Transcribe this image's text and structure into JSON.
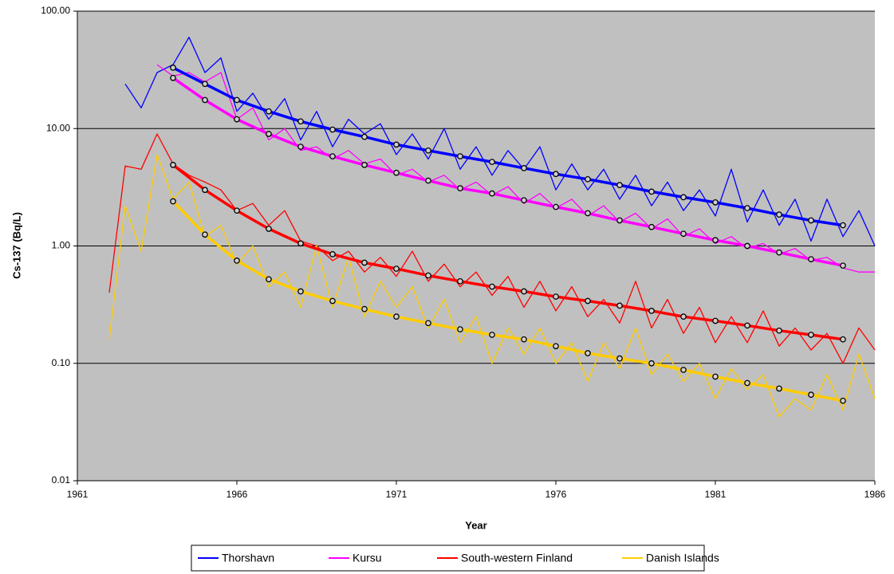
{
  "chart_data": {
    "type": "line",
    "yscale": "log",
    "grid": true,
    "legend_position": "bottom",
    "xlabel": "Year",
    "ylabel": "Cs-137 (Bq/L)",
    "xlim": [
      1961,
      1986
    ],
    "xticks": [
      1961,
      1966,
      1971,
      1976,
      1981,
      1986
    ],
    "ylim": [
      0.01,
      100
    ],
    "yticks": [
      {
        "value": 0.01,
        "label": "0.01"
      },
      {
        "value": 0.1,
        "label": "0.10"
      },
      {
        "value": 1,
        "label": "1.00"
      },
      {
        "value": 10,
        "label": "10.00"
      },
      {
        "value": 100,
        "label": "100.00"
      }
    ],
    "x": [
      1962.0,
      1962.5,
      1963.0,
      1963.5,
      1964.0,
      1964.5,
      1965.0,
      1965.5,
      1966.0,
      1966.5,
      1967.0,
      1967.5,
      1968.0,
      1968.5,
      1969.0,
      1969.5,
      1970.0,
      1970.5,
      1971.0,
      1971.5,
      1972.0,
      1972.5,
      1973.0,
      1973.5,
      1974.0,
      1974.5,
      1975.0,
      1975.5,
      1976.0,
      1976.5,
      1977.0,
      1977.5,
      1978.0,
      1978.5,
      1979.0,
      1979.5,
      1980.0,
      1980.5,
      1981.0,
      1981.5,
      1982.0,
      1982.5,
      1983.0,
      1983.5,
      1984.0,
      1984.5,
      1985.0,
      1985.5,
      1986.0
    ],
    "series": [
      {
        "name": "Thorshavn",
        "color": "#0000ff",
        "values": [
          null,
          24,
          15,
          30,
          35,
          60,
          30,
          40,
          14,
          20,
          12,
          18,
          8,
          14,
          7,
          12,
          9,
          11,
          6,
          9,
          5.5,
          10,
          4.5,
          7,
          4,
          6.5,
          4.5,
          7,
          3,
          5,
          3,
          4.5,
          2.5,
          4,
          2.2,
          3.5,
          2,
          3,
          1.8,
          4.5,
          1.6,
          3,
          1.5,
          2.5,
          1.1,
          2.5,
          1.2,
          2,
          1.0
        ]
      },
      {
        "name": "Kursu",
        "color": "#ff00ff",
        "values": [
          null,
          null,
          null,
          35,
          28,
          30,
          25,
          30,
          12,
          15,
          8,
          10,
          6.5,
          7,
          5.5,
          6.5,
          5,
          5.5,
          4,
          4.5,
          3.5,
          4,
          3,
          3.5,
          2.7,
          3.2,
          2.3,
          2.8,
          2.1,
          2.5,
          1.8,
          2.2,
          1.6,
          1.9,
          1.4,
          1.7,
          1.2,
          1.4,
          1.05,
          1.2,
          0.95,
          1.05,
          0.85,
          0.95,
          0.75,
          0.8,
          0.65,
          0.6,
          0.6
        ]
      },
      {
        "name": "South-western Finland",
        "color": "#ff0000",
        "values": [
          0.4,
          4.8,
          4.5,
          9,
          5,
          4,
          3.5,
          3,
          2,
          2.3,
          1.5,
          2,
          1.1,
          1,
          0.75,
          0.9,
          0.6,
          0.8,
          0.55,
          0.9,
          0.5,
          0.7,
          0.45,
          0.6,
          0.38,
          0.55,
          0.3,
          0.5,
          0.28,
          0.45,
          0.25,
          0.35,
          0.22,
          0.5,
          0.2,
          0.35,
          0.18,
          0.3,
          0.15,
          0.25,
          0.15,
          0.28,
          0.14,
          0.2,
          0.13,
          0.18,
          0.1,
          0.2,
          0.13
        ]
      },
      {
        "name": "Danish Islands",
        "color": "#ffcc00",
        "values": [
          0.16,
          2.2,
          0.9,
          6,
          2.5,
          3.5,
          1.2,
          1.5,
          0.7,
          1,
          0.45,
          0.6,
          0.3,
          1,
          0.3,
          0.8,
          0.25,
          0.5,
          0.3,
          0.45,
          0.2,
          0.35,
          0.15,
          0.25,
          0.1,
          0.2,
          0.12,
          0.2,
          0.1,
          0.15,
          0.07,
          0.15,
          0.09,
          0.2,
          0.08,
          0.12,
          0.07,
          0.1,
          0.05,
          0.09,
          0.06,
          0.08,
          0.035,
          0.05,
          0.04,
          0.08,
          0.04,
          0.12,
          0.05
        ]
      }
    ],
    "fit_x": [
      1964,
      1965,
      1966,
      1967,
      1968,
      1969,
      1970,
      1971,
      1972,
      1973,
      1974,
      1975,
      1976,
      1977,
      1978,
      1979,
      1980,
      1981,
      1982,
      1983,
      1984,
      1985
    ],
    "fits": [
      {
        "color": "#0000ff",
        "values": [
          33,
          24,
          17.5,
          14,
          11.5,
          9.8,
          8.5,
          7.3,
          6.5,
          5.8,
          5.2,
          4.6,
          4.1,
          3.7,
          3.3,
          2.9,
          2.6,
          2.35,
          2.1,
          1.85,
          1.65,
          1.5
        ]
      },
      {
        "color": "#ff00ff",
        "values": [
          27,
          17.5,
          12,
          9,
          7,
          5.8,
          4.9,
          4.2,
          3.6,
          3.1,
          2.8,
          2.45,
          2.15,
          1.9,
          1.65,
          1.45,
          1.27,
          1.12,
          1.0,
          0.88,
          0.77,
          0.68
        ]
      },
      {
        "color": "#ff0000",
        "values": [
          4.9,
          3.0,
          2.0,
          1.4,
          1.05,
          0.85,
          0.72,
          0.64,
          0.56,
          0.5,
          0.45,
          0.41,
          0.37,
          0.34,
          0.31,
          0.28,
          0.25,
          0.23,
          0.21,
          0.19,
          0.175,
          0.16
        ]
      },
      {
        "color": "#ffcc00",
        "values": [
          2.4,
          1.25,
          0.75,
          0.52,
          0.41,
          0.34,
          0.29,
          0.25,
          0.22,
          0.195,
          0.175,
          0.16,
          0.14,
          0.122,
          0.11,
          0.1,
          0.088,
          0.077,
          0.068,
          0.061,
          0.054,
          0.048
        ]
      }
    ]
  }
}
